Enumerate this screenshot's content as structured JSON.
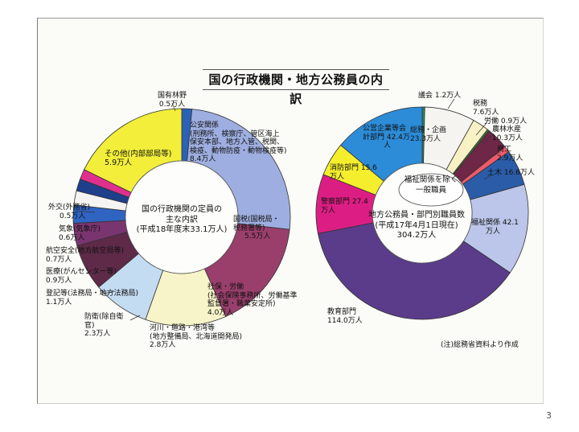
{
  "title": "国の行政機関・地方公務員の内訳",
  "page_number": "3",
  "note": "(注)総務省資料より作成",
  "chart_data": [
    {
      "type": "pie",
      "variant": "donut",
      "center_label": [
        "国の行政機関の定員の",
        "主な内訳",
        "(平成18年度末33.1万人)"
      ],
      "slices": [
        {
          "name": "国有林野",
          "value": 0.5,
          "color": "#2a62b8",
          "label_lines": [
            "国有林野",
            "0.5万人"
          ]
        },
        {
          "name": "公安関係",
          "value": 8.4,
          "color": "#9eaee0",
          "label_lines": [
            "公安関係",
            "(刑務所、検察庁、管区海上",
            "保安本部、地方入管、税関、",
            "検疫、動物防疫・動物検疫等)",
            "8.4万人"
          ]
        },
        {
          "name": "国税",
          "value": 5.5,
          "color": "#9a3f6c",
          "label_lines": [
            "国税(国税局・",
            "税務署等)",
            "5.5万人"
          ]
        },
        {
          "name": "社保・労働",
          "value": 4.0,
          "color": "#f6f4c8",
          "label_lines": [
            "社保・労働",
            "(社会保険事務所、労働基準",
            "監督署・職業安定所)",
            "4.0万人"
          ]
        },
        {
          "name": "河川・道路・港湾等",
          "value": 2.8,
          "color": "#c4dcf2",
          "label_lines": [
            "河川・道路・港湾等",
            "(地方整備局、北海道開発局)",
            "2.8万人"
          ]
        },
        {
          "name": "防衛",
          "value": 2.3,
          "color": "#5e2a48",
          "label_lines": [
            "防衛(除自衛",
            "官)",
            "2.3万人"
          ]
        },
        {
          "name": "登記等",
          "value": 1.1,
          "color": "#7a3570",
          "label_lines": [
            "登記等(法務局・地方法務局)",
            "1.1万人"
          ]
        },
        {
          "name": "医療",
          "value": 0.9,
          "color": "#2f64c2",
          "label_lines": [
            "医療(がんセンター等)",
            "0.9万人"
          ]
        },
        {
          "name": "航空安全",
          "value": 0.7,
          "color": "#f6f4f2",
          "label_lines": [
            "航空安全(地方航空局等)",
            "0.7万人"
          ]
        },
        {
          "name": "気象",
          "value": 0.6,
          "color": "#1e3f8a",
          "label_lines": [
            "気象(気象庁)",
            "0.6万人"
          ]
        },
        {
          "name": "外交",
          "value": 0.5,
          "color": "#e0308e",
          "label_lines": [
            "外交(外務省)",
            "0.5万人"
          ]
        },
        {
          "name": "その他",
          "value": 5.9,
          "color": "#f2ee3a",
          "label_lines": [
            "その他(内部部局等)",
            "5.9万人"
          ]
        }
      ]
    },
    {
      "type": "pie",
      "variant": "donut",
      "center_label": [
        "地方公務員・部門別職員数",
        "(平成17年4月1日現在)",
        "304.2万人"
      ],
      "inner_label": [
        "福祉関係を除く",
        "一般職員"
      ],
      "slices": [
        {
          "name": "議会",
          "value": 1.2,
          "color": "#2a8a6a",
          "label_lines": [
            "議会 1.2万人"
          ]
        },
        {
          "name": "総務・企画",
          "value": 23.3,
          "color": "#f6f4f0",
          "label_lines": [
            "総務・企画",
            "23.3万人"
          ]
        },
        {
          "name": "税務",
          "value": 7.6,
          "color": "#f7f1c4",
          "label_lines": [
            "税務",
            "7.6万人"
          ]
        },
        {
          "name": "労働",
          "value": 0.9,
          "color": "#3a7a3a",
          "label_lines": [
            "労働 0.9万人"
          ]
        },
        {
          "name": "農林水産",
          "value": 10.3,
          "color": "#6e2746",
          "label_lines": [
            "農林水産",
            "10.3万人"
          ]
        },
        {
          "name": "商工",
          "value": 2.9,
          "color": "#f05a6a",
          "label_lines": [
            "商工",
            "2.9万人"
          ]
        },
        {
          "name": "土木",
          "value": 16.6,
          "color": "#2a5ca8",
          "label_lines": [
            "土木 16.6万人"
          ]
        },
        {
          "name": "福祉関係",
          "value": 42.1,
          "color": "#bcc6ea",
          "label_lines": [
            "福祉関係 42.1",
            "万人"
          ]
        },
        {
          "name": "教育部門",
          "value": 114.0,
          "color": "#5a3c8a",
          "label_lines": [
            "教育部門",
            "114.0万人"
          ]
        },
        {
          "name": "警察部門",
          "value": 27.4,
          "color": "#dc1e84",
          "label_lines": [
            "警察部門 27.4",
            "万人"
          ]
        },
        {
          "name": "消防部門",
          "value": 15.6,
          "color": "#f4ee2c",
          "label_lines": [
            "消防部門 15.6",
            "万人"
          ]
        },
        {
          "name": "公営企業等会計部門",
          "value": 42.4,
          "color": "#2c8cd8",
          "label_lines": [
            "公営企業等会",
            "計部門 42.4万",
            "人"
          ]
        }
      ]
    }
  ]
}
